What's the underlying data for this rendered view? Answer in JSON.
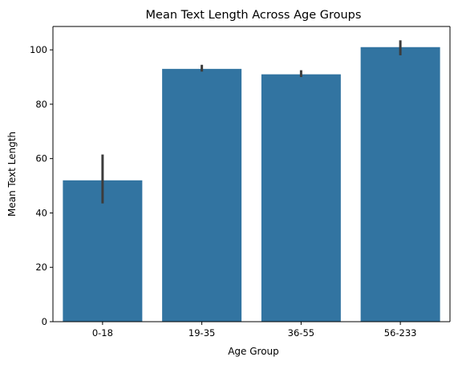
{
  "chart_data": {
    "type": "bar",
    "title": "Mean Text Length Across Age Groups",
    "xlabel": "Age Group",
    "ylabel": "Mean Text Length",
    "categories": [
      "0-18",
      "19-35",
      "36-55",
      "56-233"
    ],
    "values": [
      52,
      93,
      91,
      101
    ],
    "error_bars": [
      {
        "low": 43.5,
        "high": 61.5
      },
      {
        "low": 92.0,
        "high": 94.5
      },
      {
        "low": 90.0,
        "high": 92.5
      },
      {
        "low": 98.0,
        "high": 103.5
      }
    ],
    "ylim": [
      0,
      108.6
    ],
    "yticks": [
      0,
      20,
      40,
      60,
      80,
      100
    ],
    "grid": false,
    "bar_color": "#3274a1",
    "errorbar_color": "#3c3c3c"
  }
}
